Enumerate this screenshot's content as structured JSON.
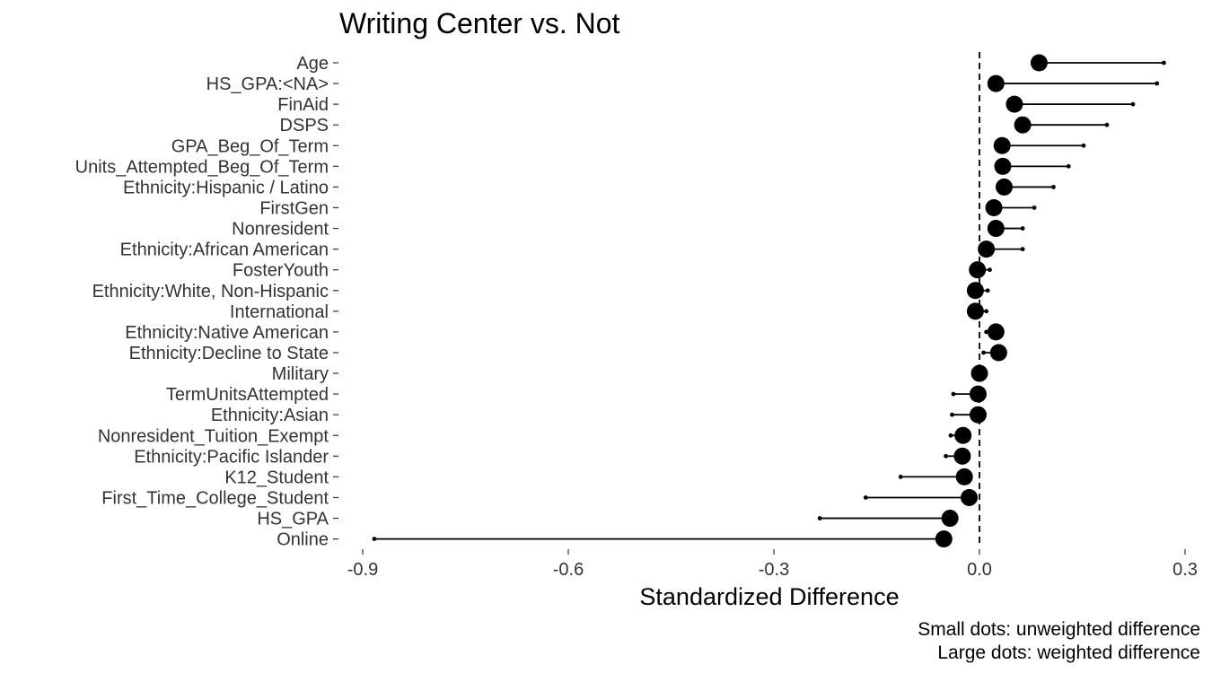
{
  "chart_data": {
    "type": "scatter",
    "title": "Writing Center vs. Not",
    "xlabel": "Standardized Difference",
    "ylabel": "",
    "xlim": [
      -0.92,
      0.3
    ],
    "x_ticks": [
      -0.9,
      -0.6,
      -0.3,
      0.0,
      0.3
    ],
    "x_tick_labels": [
      "-0.9",
      "-0.6",
      "-0.3",
      "0.0",
      "0.3"
    ],
    "reference_line": 0,
    "grid": false,
    "categories": [
      "Age",
      "HS_GPA:<NA>",
      "FinAid",
      "DSPS",
      "GPA_Beg_Of_Term",
      "Units_Attempted_Beg_Of_Term",
      "Ethnicity:Hispanic / Latino",
      "FirstGen",
      "Nonresident",
      "Ethnicity:African American",
      "FosterYouth",
      "Ethnicity:White, Non-Hispanic",
      "International",
      "Ethnicity:Native American",
      "Ethnicity:Decline to State",
      "Military",
      "TermUnitsAttempted",
      "Ethnicity:Asian",
      "Nonresident_Tuition_Exempt",
      "Ethnicity:Pacific Islander",
      "K12_Student",
      "First_Time_College_Student",
      "HS_GPA",
      "Online"
    ],
    "series": [
      {
        "name": "unweighted",
        "values": [
          0.269,
          0.259,
          0.224,
          0.186,
          0.152,
          0.13,
          0.108,
          0.08,
          0.063,
          0.063,
          0.015,
          0.012,
          0.01,
          0.01,
          0.006,
          0.0,
          -0.038,
          -0.04,
          -0.042,
          -0.049,
          -0.115,
          -0.166,
          -0.233,
          -0.883
        ]
      },
      {
        "name": "weighted",
        "values": [
          0.087,
          0.024,
          0.051,
          0.063,
          0.033,
          0.034,
          0.036,
          0.021,
          0.024,
          0.01,
          -0.003,
          -0.006,
          -0.006,
          0.024,
          0.028,
          0.0,
          -0.002,
          -0.002,
          -0.024,
          -0.025,
          -0.022,
          -0.015,
          -0.043,
          -0.052
        ]
      }
    ],
    "caption": [
      "Small dots: unweighted difference",
      "Large dots: weighted difference"
    ],
    "colors": {
      "points": "#000000",
      "tick_labels": "#333333",
      "reference_line": "#000000"
    }
  }
}
